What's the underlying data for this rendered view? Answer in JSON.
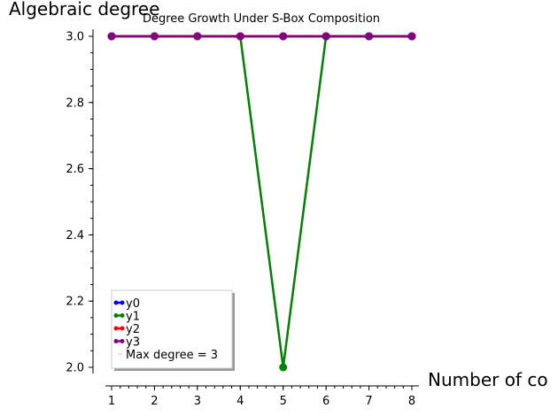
{
  "chart_data": {
    "type": "line",
    "title": "Degree Growth Under S-Box Composition",
    "xlabel": "Number of co",
    "ylabel": "Algebraic degree",
    "x": [
      1,
      2,
      3,
      4,
      5,
      6,
      7,
      8
    ],
    "xlim": [
      1,
      8
    ],
    "ylim": [
      2.0,
      3.0
    ],
    "xticks": [
      "1",
      "2",
      "3",
      "4",
      "5",
      "6",
      "7",
      "8"
    ],
    "yticks": [
      "2.0",
      "2.2",
      "2.4",
      "2.6",
      "2.8",
      "3.0"
    ],
    "grid": false,
    "legend_placement": "lower-left",
    "series": [
      {
        "name": "y0",
        "color": "#0000ff",
        "values": [
          3,
          3,
          3,
          3,
          3,
          3,
          3,
          3
        ]
      },
      {
        "name": "y1",
        "color": "#008000",
        "values": [
          3,
          3,
          3,
          3,
          2,
          3,
          3,
          3
        ]
      },
      {
        "name": "y2",
        "color": "#ff0000",
        "values": [
          3,
          3,
          3,
          3,
          3,
          3,
          3,
          3
        ]
      },
      {
        "name": "y3",
        "color": "#800080",
        "values": [
          3,
          3,
          3,
          3,
          3,
          3,
          3,
          3
        ]
      }
    ],
    "reference_line": {
      "name": "Max degree = 3",
      "value": 3,
      "color": "#ffb6c1"
    }
  }
}
